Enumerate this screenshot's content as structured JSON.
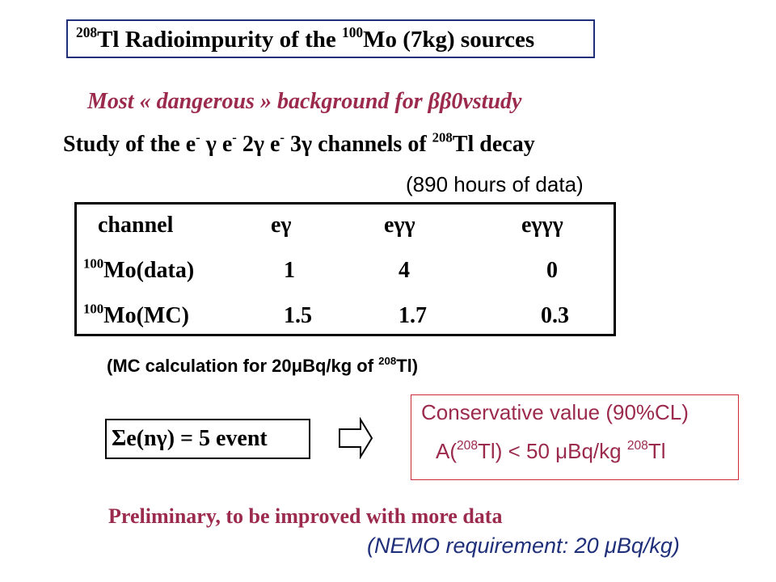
{
  "title": {
    "isotope_sup": "208",
    "text1": "Tl Radioimpurity of the ",
    "source_sup": "100",
    "text2": "Mo (7kg) sources"
  },
  "subtitle": {
    "text": "Most « dangerous » background for ",
    "greek": "ββ0ν",
    "after": "study"
  },
  "study": {
    "prefix": "Study of the e",
    "minus": "-",
    "ch1": " γ  e",
    "ch2": " 2γ e",
    "ch3": " 3γ channels of ",
    "iso_sup": "208",
    "suffix": "Tl decay"
  },
  "hours_note": "(890 hours of data)",
  "table": {
    "headers": [
      "channel",
      "eγ",
      "eγγ",
      "eγγγ"
    ],
    "rows": [
      {
        "sup": "100",
        "label": "Mo(data)",
        "values": [
          "1",
          "4",
          "0"
        ]
      },
      {
        "sup": "100",
        "label": "Mo(MC)",
        "values": [
          "1.5",
          "1.7",
          "0.3"
        ]
      }
    ]
  },
  "mc_note": {
    "text1": "(MC calculation for 20",
    "mu": "μ",
    "text2": "Bq/kg of ",
    "sup": "208",
    "text3": "Tl)"
  },
  "sum_box": "Σe(nγ) = 5 event",
  "result": {
    "line1": "Conservative  value (90%CL)",
    "line2_a": "A(",
    "line2_sup": "208",
    "line2_b": "Tl) < 50 ",
    "line2_mu": "μ",
    "line2_c": "Bq/kg ",
    "line2_sup2": "208",
    "line2_d": "Tl"
  },
  "prelim": "Preliminary, to be improved with more data",
  "nemo_note": "(NEMO requirement:  20 μBq/kg)",
  "colors": {
    "accent": "#9b2a4d",
    "title_border": "#1f2f7a",
    "result_border": "#cc2a3a"
  }
}
